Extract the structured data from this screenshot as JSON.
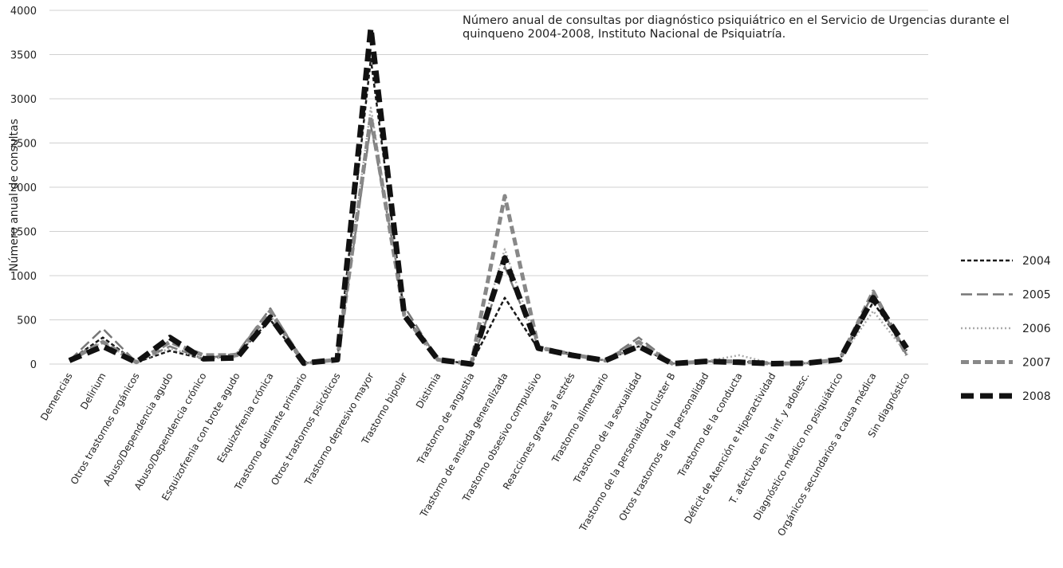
{
  "chart_data": {
    "type": "line",
    "title": "Número anual de consultas por diagnóstico psiquiátrico en el Servicio de Urgencias durante el quinqueno 2004-2008, Instituto Nacional de Psiquiatría.",
    "y_label": "Número anual de consultas",
    "categories": [
      "Demencias",
      "Delirium",
      "Otros trastornos orgánicos",
      "Abuso/Dependencia agudo",
      "Abuso/Dependencia crónico",
      "Esquizofrenia con brote agudo",
      "Esquizofrenia crónica",
      "Trastorno delirante primario",
      "Otros trastornos psicóticos",
      "Trastorno depresivo mayor",
      "Trastorno bipolar",
      "Distimia",
      "Trastorno de angustia",
      "Trastorno de ansieda generalizada",
      "Trastorno obsesivo compulsivo",
      "Reacciones graves al estrés",
      "Trastorno alimentario",
      "Trastorno de la sexualidad",
      "Trastorno de la personalidad cluster B",
      "Otros trastornos de la personalidad",
      "Trastorno de la conducta",
      "Déficit de Atención e Hiperactividad",
      "T. afectivos en la inf. y adolesc.",
      "Diagnóstico médico no psiquiátrico",
      "Orgánicos secundarios a causa médica",
      "Sin diagnóstico"
    ],
    "series": [
      {
        "name": "2004",
        "color": "#1a1a1a",
        "dash": "5,3",
        "width": 2.5,
        "values": [
          40,
          300,
          20,
          150,
          60,
          100,
          500,
          10,
          50,
          3450,
          550,
          50,
          0,
          750,
          170,
          120,
          40,
          200,
          5,
          30,
          30,
          5,
          10,
          50,
          700,
          150
        ]
      },
      {
        "name": "2005",
        "color": "#777777",
        "dash": "14,6",
        "width": 2.5,
        "values": [
          40,
          400,
          20,
          200,
          60,
          120,
          630,
          10,
          50,
          2700,
          650,
          50,
          0,
          1100,
          200,
          100,
          40,
          300,
          5,
          30,
          30,
          5,
          10,
          50,
          800,
          100
        ]
      },
      {
        "name": "2006",
        "color": "#aaaaaa",
        "dash": "2,3",
        "width": 2.5,
        "values": [
          40,
          250,
          20,
          180,
          60,
          80,
          550,
          10,
          50,
          2900,
          550,
          50,
          0,
          1300,
          180,
          120,
          40,
          200,
          5,
          30,
          100,
          5,
          10,
          50,
          600,
          120
        ]
      },
      {
        "name": "2007",
        "color": "#888888",
        "dash": "10,5",
        "width": 5,
        "values": [
          40,
          250,
          20,
          250,
          100,
          100,
          600,
          10,
          50,
          2800,
          550,
          50,
          0,
          1900,
          190,
          110,
          40,
          250,
          5,
          30,
          30,
          5,
          10,
          50,
          820,
          100
        ]
      },
      {
        "name": "2008",
        "color": "#111111",
        "dash": "16,8",
        "width": 7,
        "values": [
          40,
          200,
          20,
          300,
          60,
          70,
          530,
          10,
          50,
          3800,
          550,
          50,
          0,
          1200,
          180,
          100,
          40,
          200,
          5,
          30,
          20,
          5,
          10,
          50,
          750,
          180
        ]
      }
    ],
    "ylim": [
      0,
      4000
    ],
    "yticks": [
      0,
      500,
      1000,
      1500,
      2000,
      2500,
      3000,
      3500,
      4000
    ],
    "grid": true,
    "legend": "right"
  }
}
